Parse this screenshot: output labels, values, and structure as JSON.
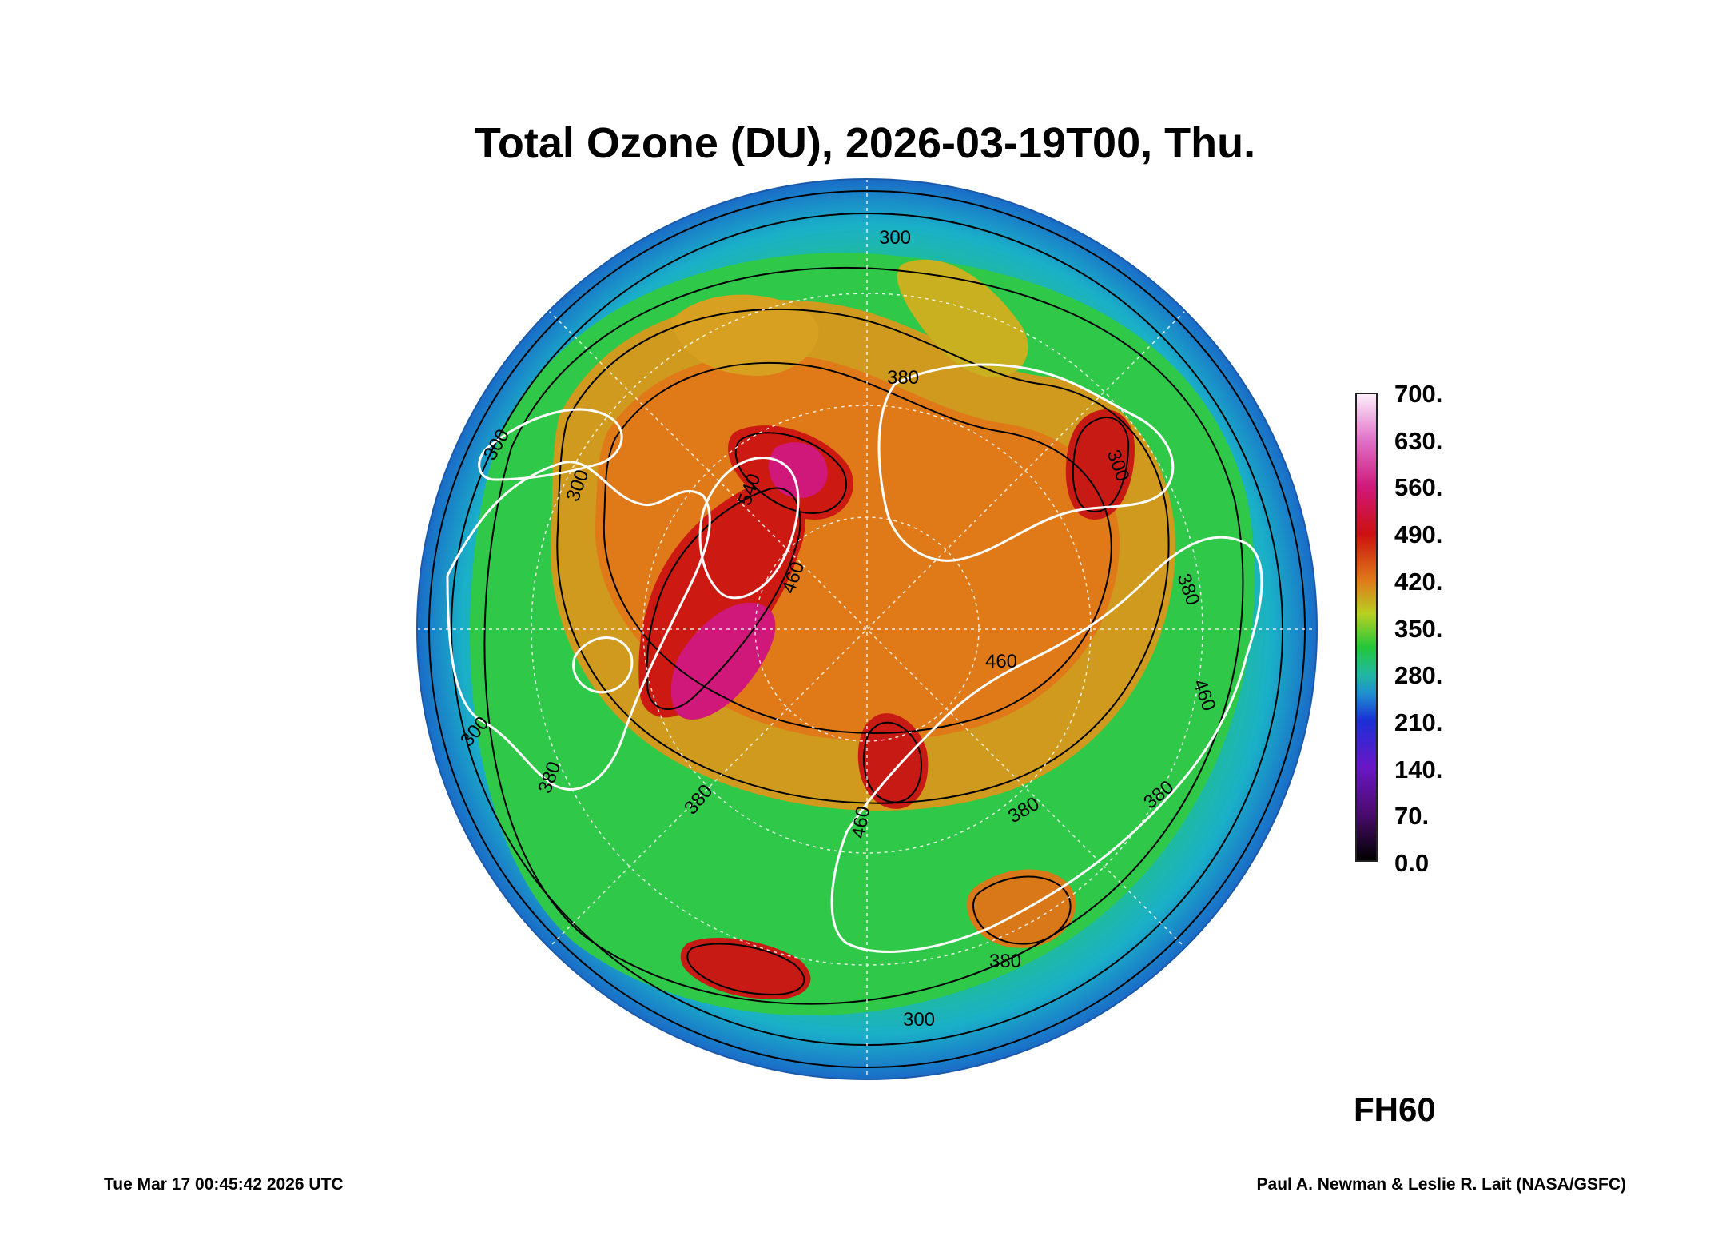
{
  "title": "Total Ozone (DU), 2026-03-19T00, Thu.",
  "forecast_hour": "FH60",
  "footer": {
    "timestamp": "Tue Mar 17 00:45:42 2026 UTC",
    "credit": "Paul A. Newman & Leslie R. Lait (NASA/GSFC)"
  },
  "colorbar": {
    "labels": [
      "700.",
      "630.",
      "560.",
      "490.",
      "420.",
      "350.",
      "280.",
      "210.",
      "140.",
      "70.",
      "0.0"
    ],
    "min": 0,
    "max": 700,
    "stops": [
      {
        "value": 0,
        "color": "#000000"
      },
      {
        "value": 70,
        "color": "#4b0b6e"
      },
      {
        "value": 140,
        "color": "#6a16c8"
      },
      {
        "value": 210,
        "color": "#1a2fd6"
      },
      {
        "value": 250,
        "color": "#1e8fd0"
      },
      {
        "value": 280,
        "color": "#1fb8a0"
      },
      {
        "value": 320,
        "color": "#22c83a"
      },
      {
        "value": 370,
        "color": "#b8d020"
      },
      {
        "value": 420,
        "color": "#e07a18"
      },
      {
        "value": 490,
        "color": "#cc1010"
      },
      {
        "value": 560,
        "color": "#d0187a"
      },
      {
        "value": 630,
        "color": "#e070c8"
      },
      {
        "value": 700,
        "color": "#fdeefa"
      }
    ]
  },
  "contour_labels": [
    {
      "text": "300"
    },
    {
      "text": "380"
    },
    {
      "text": "300"
    },
    {
      "text": "300"
    },
    {
      "text": "540"
    },
    {
      "text": "460"
    },
    {
      "text": "300"
    },
    {
      "text": "380"
    },
    {
      "text": "380"
    },
    {
      "text": "460"
    },
    {
      "text": "380"
    },
    {
      "text": "460"
    },
    {
      "text": "380"
    },
    {
      "text": "300"
    },
    {
      "text": "380"
    },
    {
      "text": "300"
    },
    {
      "text": "460"
    },
    {
      "text": "380"
    }
  ],
  "map_colors": {
    "edge": "#1a78c8",
    "rim": "#1aa8c0",
    "green": "#2cc84a",
    "yellow": "#b8cc22",
    "orange": "#e07818",
    "red": "#cc1414",
    "magenta": "#d0187a",
    "coast": "#ffffff",
    "contour": "#000000"
  }
}
